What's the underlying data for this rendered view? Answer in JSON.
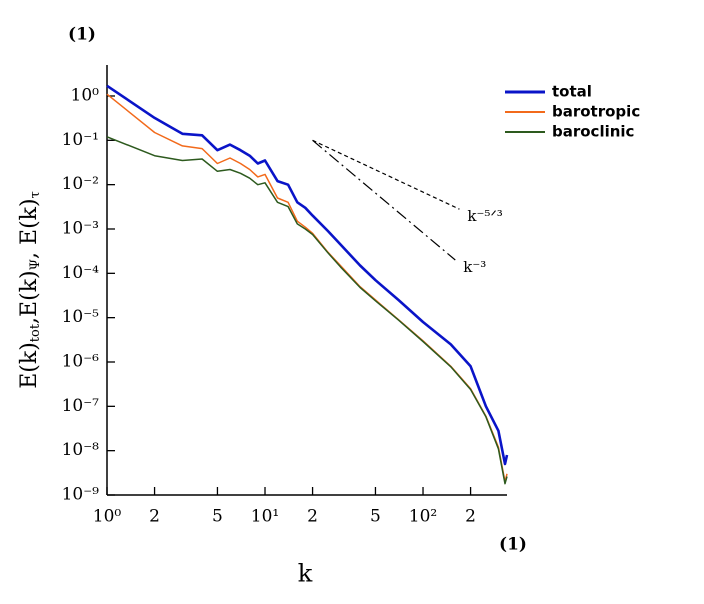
{
  "chart_data": {
    "type": "line",
    "top_label": "(1)",
    "bottom_label": "(1)",
    "xlabel": "k",
    "ylabel": [
      "E(k)",
      "tot",
      ",E(k)",
      "Ψ",
      ", E(k)",
      "τ"
    ],
    "xscale": "log",
    "yscale": "log",
    "grid": false,
    "legend": "upper right",
    "xlim": [
      1,
      340
    ],
    "ylim": [
      1e-09,
      5
    ],
    "xticks": [
      {
        "value": 1,
        "label": "10⁰"
      },
      2,
      5,
      {
        "value": 10,
        "label": "10¹"
      },
      {
        "value": 20,
        "label": "2"
      },
      {
        "value": 50,
        "label": "5"
      },
      {
        "value": 100,
        "label": "10²"
      },
      {
        "value": 200,
        "label": "2"
      }
    ],
    "yticks": [
      {
        "value": 1,
        "label": "10⁰"
      },
      {
        "value": 0.1,
        "label": "10⁻¹"
      },
      {
        "value": 0.01,
        "label": "10⁻²"
      },
      {
        "value": 0.001,
        "label": "10⁻³"
      },
      {
        "value": 0.0001,
        "label": "10⁻⁴"
      },
      {
        "value": 1e-05,
        "label": "10⁻⁵"
      },
      {
        "value": 1e-06,
        "label": "10⁻⁶"
      },
      {
        "value": 1e-07,
        "label": "10⁻⁷"
      },
      {
        "value": 1e-08,
        "label": "10⁻⁸"
      },
      {
        "value": 1e-09,
        "label": "10⁻⁹"
      }
    ],
    "x": [
      1,
      2,
      3,
      4,
      5,
      6,
      7,
      8,
      9,
      10,
      12,
      14,
      16,
      18,
      20,
      25,
      30,
      40,
      50,
      70,
      100,
      150,
      200,
      250,
      300,
      330,
      340
    ],
    "series": [
      {
        "name": "total",
        "color": "#0a14c8",
        "width": 2.6,
        "values": [
          1.7,
          0.32,
          0.14,
          0.13,
          0.06,
          0.08,
          0.06,
          0.045,
          0.03,
          0.035,
          0.012,
          0.01,
          0.004,
          0.003,
          0.002,
          0.0009,
          0.00045,
          0.00015,
          7e-05,
          2.5e-05,
          8e-06,
          2.5e-06,
          8e-07,
          1e-07,
          2.8e-08,
          5e-09,
          8e-09
        ]
      },
      {
        "name": "barotropic",
        "color": "#f26a1b",
        "width": 1.5,
        "values": [
          1.1,
          0.15,
          0.075,
          0.065,
          0.03,
          0.04,
          0.03,
          0.022,
          0.015,
          0.017,
          0.005,
          0.004,
          0.0015,
          0.0011,
          0.0008,
          0.0003,
          0.00015,
          5e-05,
          2.5e-05,
          9e-06,
          3e-06,
          8e-07,
          2.5e-07,
          6e-08,
          1.2e-08,
          2e-09,
          3e-09
        ]
      },
      {
        "name": "baroclinic",
        "color": "#2d5a1e",
        "width": 1.5,
        "values": [
          0.12,
          0.045,
          0.035,
          0.038,
          0.02,
          0.022,
          0.018,
          0.014,
          0.01,
          0.011,
          0.004,
          0.0032,
          0.0013,
          0.001,
          0.00075,
          0.00029,
          0.00014,
          4.8e-05,
          2.4e-05,
          8.8e-06,
          2.9e-06,
          7.8e-07,
          2.4e-07,
          5.8e-08,
          1.1e-08,
          1.8e-09,
          2.6e-09
        ]
      }
    ],
    "reference_lines": [
      {
        "label": "k⁻⁵ᐟ³",
        "x": [
          20,
          170
        ],
        "y": [
          0.1,
          0.0028
        ],
        "dash": "4 3"
      },
      {
        "label": "k⁻³",
        "x": [
          20,
          160
        ],
        "y": [
          0.1,
          0.0002
        ],
        "dash": "12 4 2 4"
      }
    ]
  }
}
